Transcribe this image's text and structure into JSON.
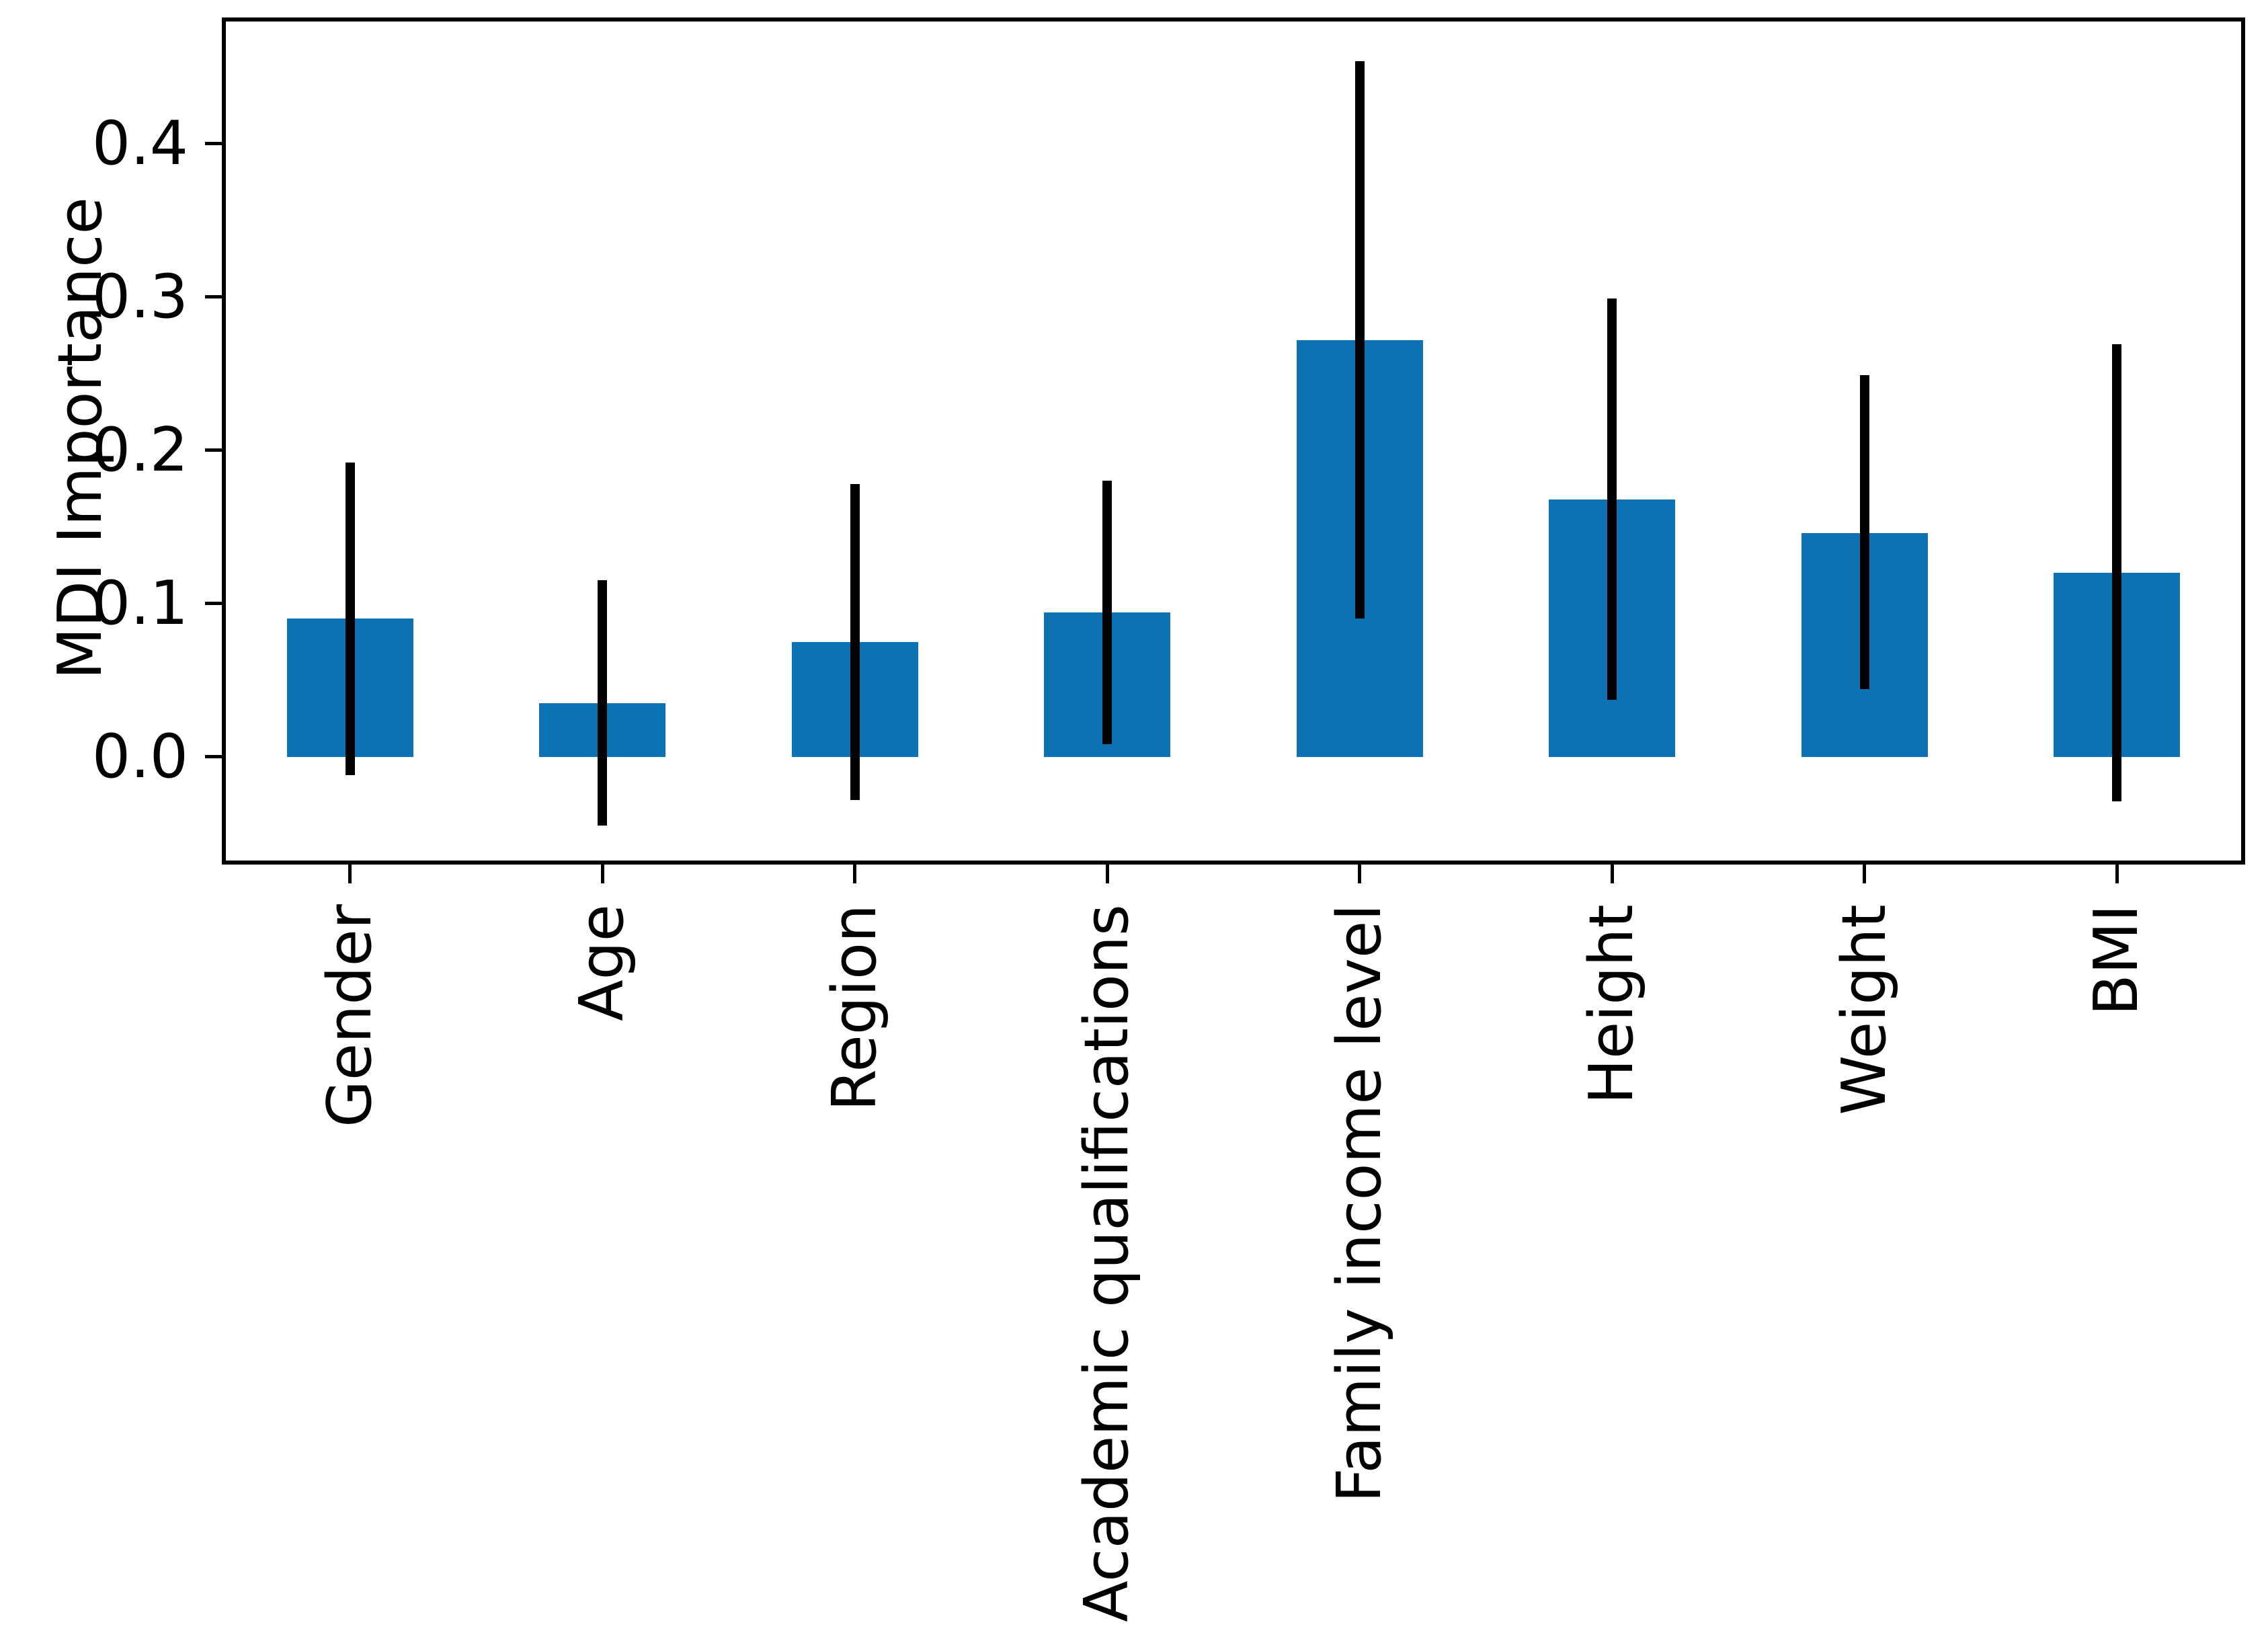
{
  "figure": {
    "background": "#ffffff"
  },
  "chart_data": {
    "type": "bar",
    "title": "",
    "xlabel": "",
    "ylabel": "MDI Importance",
    "categories": [
      "Gender",
      "Age",
      "Region",
      "Academic qualifications",
      "Family income level",
      "Height",
      "Weight",
      "BMI"
    ],
    "values": [
      0.09,
      0.035,
      0.075,
      0.094,
      0.272,
      0.168,
      0.146,
      0.12
    ],
    "errors_std": [
      0.102,
      0.08,
      0.103,
      0.086,
      0.182,
      0.131,
      0.103,
      0.149
    ],
    "error_low": [
      -0.012,
      -0.045,
      -0.028,
      0.008,
      0.09,
      0.037,
      0.044,
      -0.029
    ],
    "error_high": [
      0.192,
      0.115,
      0.178,
      0.18,
      0.454,
      0.299,
      0.249,
      0.269
    ],
    "yticks": [
      0.0,
      0.1,
      0.2,
      0.3,
      0.4
    ],
    "ytick_labels": [
      "0.0",
      "0.1",
      "0.2",
      "0.3",
      "0.4"
    ],
    "ylim": [
      -0.069,
      0.481
    ],
    "x_label_rotation_deg": 90,
    "bar_color": "#0d72b4",
    "error_bar_color": "#000000",
    "axis_color": "#000000",
    "grid": false,
    "legend": null
  }
}
